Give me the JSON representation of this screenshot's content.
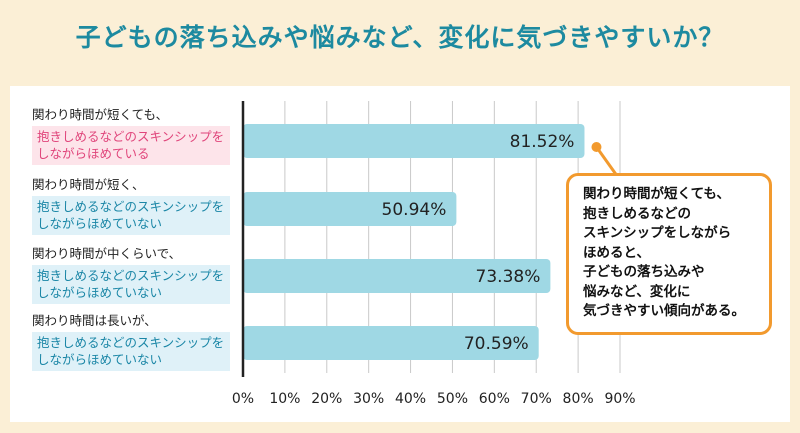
{
  "title": "子どもの落ち込みや悩みなど、変化に気づきやすいか？",
  "rows": [
    {
      "line1": "関わり時間が短くても、",
      "line2": "抱きしめるなどのスキンシップを",
      "line3": "しながらほめている",
      "box_color": "pink"
    },
    {
      "line1": "関わり時間が短く、",
      "line2": "抱きしめるなどのスキンシップを",
      "line3": "しながらほめていない",
      "box_color": "blue"
    },
    {
      "line1": "関わり時間が中くらいで、",
      "line2": "抱きしめるなどのスキンシップを",
      "line3": "しながらほめていない",
      "box_color": "blue"
    },
    {
      "line1": "関わり時間は長いが、",
      "line2": "抱きしめるなどのスキンシップを",
      "line3": "しながらほめていない",
      "box_color": "blue"
    }
  ],
  "callout": {
    "lines": [
      "関わり時間が短くても、",
      "抱きしめるなどの",
      "スキンシップをしながら",
      "ほめると、",
      "子どもの落ち込みや",
      "悩みなど、変化に",
      "気づきやすい傾向がある。"
    ],
    "border_color": "#f29a2e"
  },
  "chart_data": {
    "type": "bar",
    "orientation": "horizontal",
    "categories": [
      "関わり時間が短くても、抱きしめるなどのスキンシップをしながらほめている",
      "関わり時間が短く、抱きしめるなどのスキンシップをしながらほめていない",
      "関わり時間が中くらいで、抱きしめるなどのスキンシップをしながらほめていない",
      "関わり時間は長いが、抱きしめるなどのスキンシップをしながらほめていない"
    ],
    "values": [
      81.52,
      50.94,
      73.38,
      70.59
    ],
    "value_labels": [
      "81.52%",
      "50.94%",
      "73.38%",
      "70.59%"
    ],
    "xlim": [
      0,
      90
    ],
    "xticks": [
      "0%",
      "10%",
      "20%",
      "30%",
      "40%",
      "50%",
      "60%",
      "70%",
      "80%",
      "90%"
    ],
    "grid": true,
    "bar_color": "#9fd8e4"
  }
}
